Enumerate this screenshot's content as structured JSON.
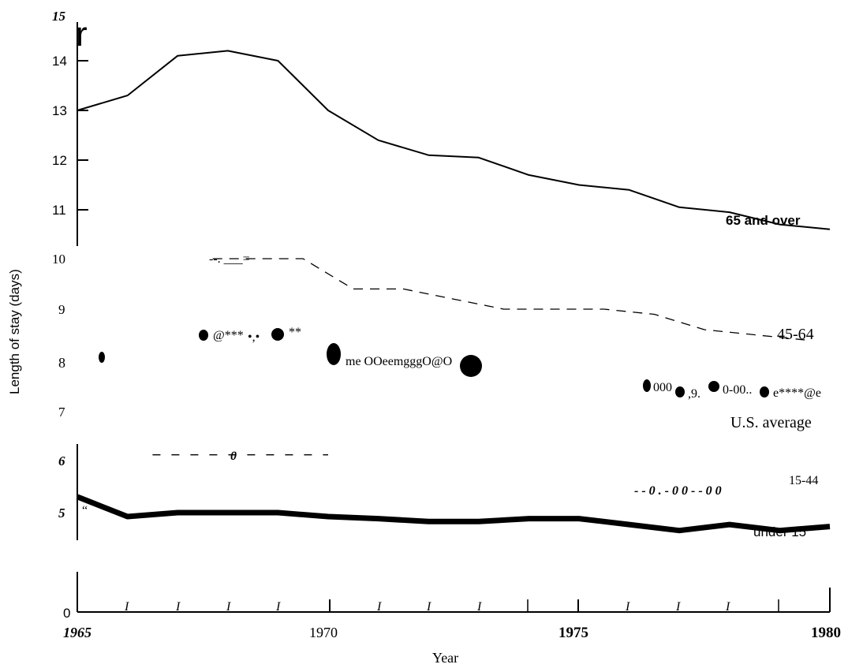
{
  "chart_data": {
    "type": "line",
    "xlabel": "Year",
    "ylabel": "Length of stay (days)",
    "xlim": [
      1965,
      1980
    ],
    "ylim": [
      0,
      15
    ],
    "x_ticks": [
      "1965",
      "1970",
      "1975",
      "1980"
    ],
    "y_ticks": [
      "15",
      "14",
      "13",
      "12",
      "11",
      "10",
      "9",
      "8",
      "7",
      "6",
      "5",
      "0"
    ],
    "series": [
      {
        "name": "65 and over",
        "x": [
          1965,
          1966,
          1967,
          1968,
          1969,
          1970,
          1971,
          1972,
          1973,
          1974,
          1975,
          1976,
          1977,
          1978,
          1979,
          1980
        ],
        "values": [
          13.0,
          13.3,
          14.1,
          14.2,
          14.0,
          13.0,
          12.4,
          12.1,
          12.05,
          11.7,
          11.5,
          11.4,
          11.05,
          10.95,
          10.7,
          10.6
        ]
      },
      {
        "name": "45-64",
        "x": [
          1967.7,
          1968.4,
          1969.5,
          1970.5,
          1971.5,
          1972.5,
          1973.5,
          1974.5,
          1975.5,
          1976.5,
          1977.5,
          1978.5,
          1979.5
        ],
        "values": [
          10.0,
          10.0,
          10.0,
          9.4,
          9.4,
          9.2,
          9.0,
          9.0,
          9.0,
          8.9,
          8.6,
          8.5,
          8.4
        ]
      },
      {
        "name": "U.S. average",
        "x": [
          1965.5,
          1967.5,
          1968.5,
          1970,
          1972.5,
          1977,
          1978,
          1979
        ],
        "values": [
          8.1,
          8.6,
          8.6,
          8.2,
          7.9,
          7.5,
          7.5,
          7.5
        ]
      },
      {
        "name": "15-44",
        "x": [
          1966.5,
          1968.5,
          1970
        ],
        "values": [
          6.1,
          6.1,
          6.1
        ]
      },
      {
        "name": "under 15",
        "x": [
          1965,
          1966,
          1967,
          1968,
          1969,
          1970,
          1971,
          1972,
          1973,
          1974,
          1975,
          1976,
          1977,
          1978,
          1979,
          1980
        ],
        "values": [
          5.3,
          4.8,
          5.0,
          5.0,
          5.0,
          4.8,
          4.7,
          4.55,
          4.55,
          4.7,
          4.7,
          4.4,
          4.1,
          4.4,
          4.1,
          4.3
        ]
      }
    ],
    "annotations": {
      "noise_1": "--. ___=",
      "noise_2": "@***",
      "noise_3": "•,•",
      "noise_4": "**",
      "noise_5": "me OOeemgggO@O",
      "noise_6": "000",
      "noise_7": ",9.",
      "noise_8": "0-00..",
      "noise_9": "e****@e",
      "noise_10": "0",
      "noise_11": "- - 0 . - 0 0 - - 0 0",
      "noise_12": "“",
      "glyph_r": "r"
    }
  }
}
